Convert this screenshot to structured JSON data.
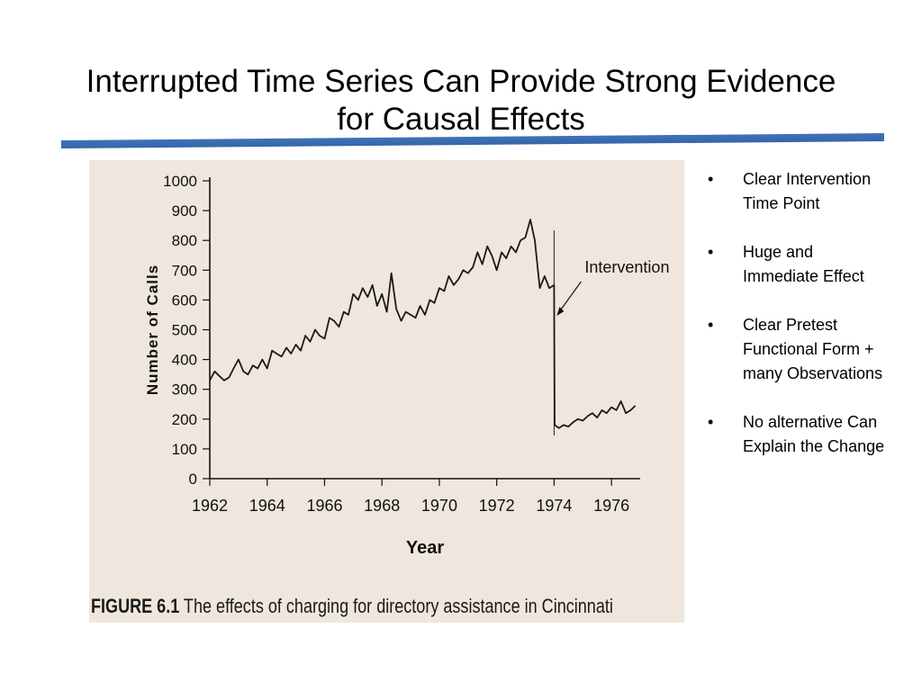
{
  "slide": {
    "title_line1": "Interrupted Time Series Can Provide Strong Evidence",
    "title_line2": "for Causal Effects",
    "accent_color": "#3f73b8"
  },
  "figure": {
    "caption_label": "FIGURE 6.1",
    "caption_text": " The effects of charging for directory assistance in Cincinnati"
  },
  "bullets": [
    "Clear Intervention Time Point",
    "Huge and Immediate Effect",
    "Clear Pretest Functional Form + many Observations",
    "No alternative Can Explain the Change"
  ],
  "chart_data": {
    "type": "line",
    "title": "",
    "xlabel": "Year",
    "ylabel": "Number of Calls",
    "xlim": [
      1962,
      1977
    ],
    "ylim": [
      0,
      1000
    ],
    "x_ticks": [
      1962,
      1964,
      1966,
      1968,
      1970,
      1972,
      1974,
      1976
    ],
    "y_ticks": [
      0,
      100,
      200,
      300,
      400,
      500,
      600,
      700,
      800,
      900,
      1000
    ],
    "annotation": {
      "text": "Intervention",
      "x": 1974
    },
    "series": [
      {
        "x": [
          1962.0,
          1962.17,
          1962.33,
          1962.5,
          1962.67,
          1962.83,
          1963.0,
          1963.17,
          1963.33,
          1963.5,
          1963.67,
          1963.83,
          1964.0,
          1964.17,
          1964.33,
          1964.5,
          1964.67,
          1964.83,
          1965.0,
          1965.17,
          1965.33,
          1965.5,
          1965.67,
          1965.83,
          1966.0,
          1966.17,
          1966.33,
          1966.5,
          1966.67,
          1966.83,
          1967.0,
          1967.17,
          1967.33,
          1967.5,
          1967.67,
          1967.83,
          1968.0,
          1968.17,
          1968.33,
          1968.5,
          1968.67,
          1968.83,
          1969.0,
          1969.17,
          1969.33,
          1969.5,
          1969.67,
          1969.83,
          1970.0,
          1970.17,
          1970.33,
          1970.5,
          1970.67,
          1970.83,
          1971.0,
          1971.17,
          1971.33,
          1971.5,
          1971.67,
          1971.83,
          1972.0,
          1972.17,
          1972.33,
          1972.5,
          1972.67,
          1972.83,
          1973.0,
          1973.17,
          1973.33,
          1973.5,
          1973.67,
          1973.83,
          1974.0,
          1974.02,
          1974.17,
          1974.33,
          1974.5,
          1974.67,
          1974.83,
          1975.0,
          1975.17,
          1975.33,
          1975.5,
          1975.67,
          1975.83,
          1976.0,
          1976.17,
          1976.33,
          1976.5,
          1976.67,
          1976.83
        ],
        "values": [
          330,
          360,
          345,
          330,
          340,
          370,
          400,
          360,
          350,
          380,
          370,
          400,
          370,
          430,
          420,
          410,
          440,
          420,
          450,
          430,
          480,
          460,
          500,
          480,
          470,
          540,
          530,
          510,
          560,
          550,
          620,
          600,
          640,
          610,
          650,
          580,
          620,
          560,
          690,
          570,
          530,
          560,
          550,
          540,
          580,
          550,
          600,
          590,
          640,
          630,
          680,
          650,
          670,
          700,
          690,
          710,
          760,
          720,
          780,
          750,
          700,
          760,
          740,
          780,
          760,
          800,
          810,
          870,
          800,
          640,
          680,
          640,
          650,
          180,
          170,
          180,
          175,
          190,
          200,
          195,
          210,
          220,
          205,
          230,
          220,
          240,
          230,
          260,
          220,
          230,
          245
        ]
      }
    ]
  }
}
